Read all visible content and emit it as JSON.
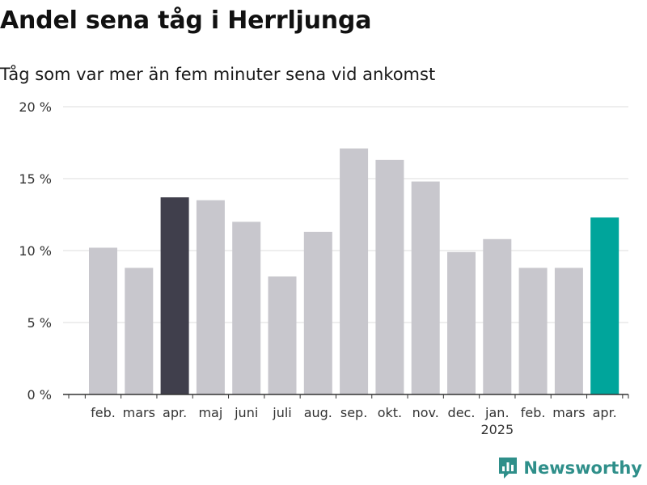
{
  "header": {
    "title": "Andel sena tåg i Herrljunga",
    "subtitle": "Tåg som var mer än fem minuter sena vid ankomst"
  },
  "brand": {
    "name": "Newsworthy",
    "icon": "newsworthy-logo-icon",
    "color": "#2f8f8a"
  },
  "colors": {
    "default_bar": "#c8c7cd",
    "highlight_dark": "#403f4c",
    "highlight_latest": "#00a59b",
    "grid": "#dddddd",
    "axis": "#333333"
  },
  "chart_data": {
    "type": "bar",
    "title": "Andel sena tåg i Herrljunga",
    "subtitle": "Tåg som var mer än fem minuter sena vid ankomst",
    "xlabel": "",
    "ylabel": "",
    "ylim": [
      0,
      20
    ],
    "y_ticks": [
      0,
      5,
      10,
      15,
      20
    ],
    "y_tick_labels": [
      "0 %",
      "5 %",
      "10 %",
      "15 %",
      "20 %"
    ],
    "grid": true,
    "categories": [
      "feb.",
      "mars",
      "apr.",
      "maj",
      "juni",
      "juli",
      "aug.",
      "sep.",
      "okt.",
      "nov.",
      "dec.",
      "jan.",
      "feb.",
      "mars",
      "apr."
    ],
    "year_labels": [
      {
        "index": 11,
        "label": "2025"
      }
    ],
    "values": [
      10.2,
      8.8,
      13.7,
      13.5,
      12.0,
      8.2,
      11.3,
      17.1,
      16.3,
      14.8,
      9.9,
      10.8,
      8.8,
      8.8,
      12.3
    ],
    "bar_colors": [
      "#c8c7cd",
      "#c8c7cd",
      "#403f4c",
      "#c8c7cd",
      "#c8c7cd",
      "#c8c7cd",
      "#c8c7cd",
      "#c8c7cd",
      "#c8c7cd",
      "#c8c7cd",
      "#c8c7cd",
      "#c8c7cd",
      "#c8c7cd",
      "#c8c7cd",
      "#00a59b"
    ]
  }
}
